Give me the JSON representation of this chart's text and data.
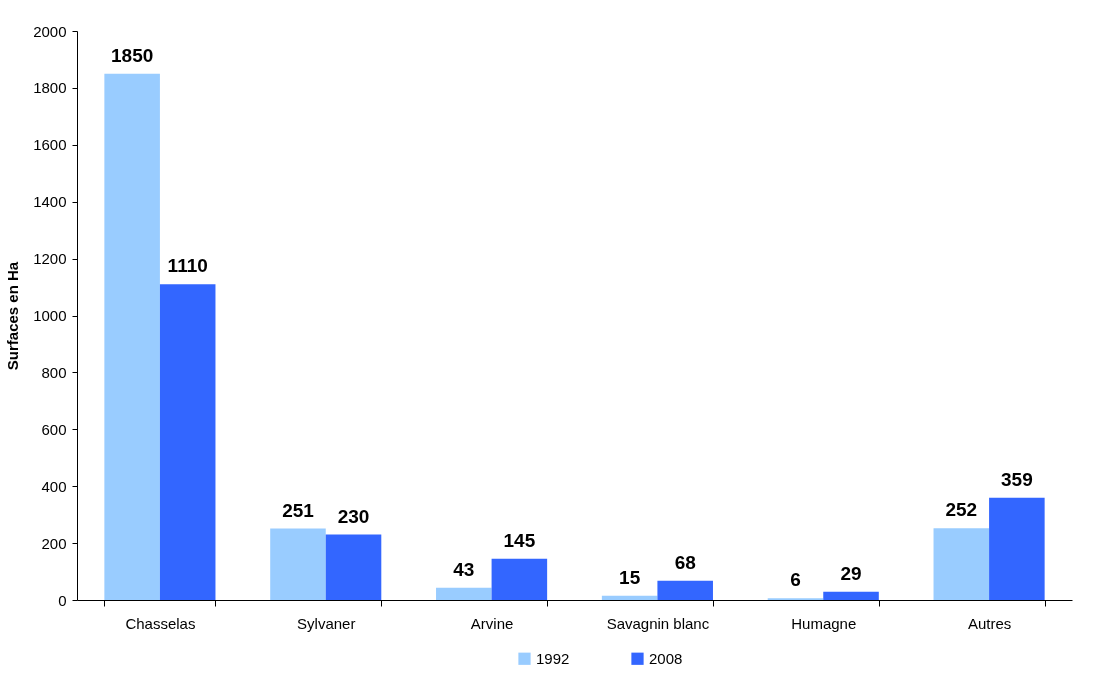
{
  "chart_data": {
    "type": "bar",
    "ylabel": "Surfaces en Ha",
    "categories": [
      "Chasselas",
      "Sylvaner",
      "Arvine",
      "Savagnin blanc",
      "Humagne",
      "Autres"
    ],
    "series": [
      {
        "name": "1992",
        "color": "#99ccff",
        "values": [
          1850,
          251,
          43,
          15,
          6,
          252
        ]
      },
      {
        "name": "2008",
        "color": "#3366ff",
        "values": [
          1110,
          230,
          145,
          68,
          29,
          359
        ]
      }
    ],
    "ylim": [
      0,
      2000
    ],
    "yticks": [
      0,
      200,
      400,
      600,
      800,
      1000,
      1200,
      1400,
      1600,
      1800,
      2000
    ],
    "data_labels": true,
    "legend": "bottom",
    "grid": false
  }
}
